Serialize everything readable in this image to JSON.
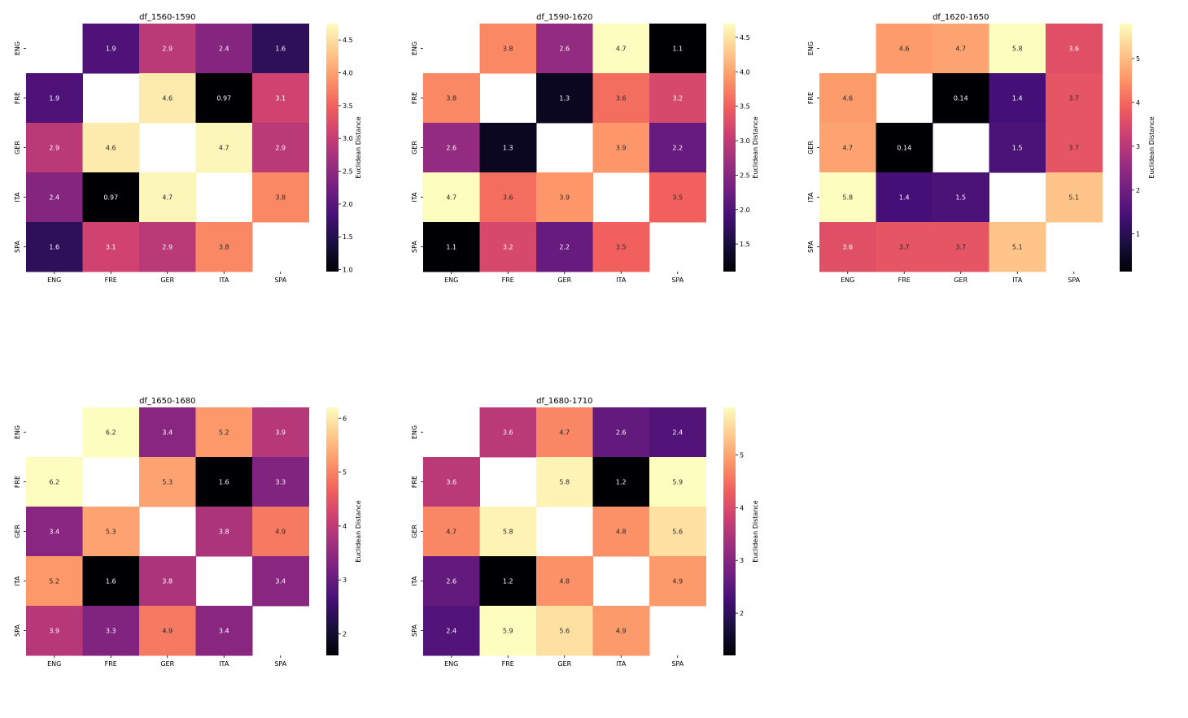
{
  "figure": {
    "colormap_name": "magma",
    "colormap": [
      "#000004",
      "#180f3d",
      "#440f76",
      "#721f81",
      "#9e2f7f",
      "#cd4071",
      "#f1605d",
      "#fd9668",
      "#feca8d",
      "#fcfdbf"
    ]
  },
  "chart_data": [
    {
      "type": "heatmap",
      "title": "df_1560-1590",
      "x_categories": [
        "ENG",
        "FRE",
        "GER",
        "ITA",
        "SPA"
      ],
      "y_categories": [
        "ENG",
        "FRE",
        "GER",
        "ITA",
        "SPA"
      ],
      "values": [
        [
          null,
          1.9,
          2.9,
          2.4,
          1.6
        ],
        [
          1.9,
          null,
          4.6,
          0.97,
          3.1
        ],
        [
          2.9,
          4.6,
          null,
          4.7,
          2.9
        ],
        [
          2.4,
          0.97,
          4.7,
          null,
          3.8
        ],
        [
          1.6,
          3.1,
          2.9,
          3.8,
          null
        ]
      ],
      "annotations": [
        [
          "",
          "1.9",
          "2.9",
          "2.4",
          "1.6"
        ],
        [
          "1.9",
          "",
          "4.6",
          "0.97",
          "3.1"
        ],
        [
          "2.9",
          "4.6",
          "",
          "4.7",
          "2.9"
        ],
        [
          "2.4",
          "0.97",
          "4.7",
          "",
          "3.8"
        ],
        [
          "1.6",
          "3.1",
          "2.9",
          "3.8",
          ""
        ]
      ],
      "colorbar": {
        "label": "Euclidean Distance",
        "range": [
          0.97,
          4.75
        ],
        "ticks": [
          1.0,
          1.5,
          2.0,
          2.5,
          3.0,
          3.5,
          4.0,
          4.5
        ],
        "tick_labels": [
          "1.0",
          "1.5",
          "2.0",
          "2.5",
          "3.0",
          "3.5",
          "4.0",
          "4.5"
        ]
      }
    },
    {
      "type": "heatmap",
      "title": "df_1590-1620",
      "x_categories": [
        "ENG",
        "FRE",
        "GER",
        "ITA",
        "SPA"
      ],
      "y_categories": [
        "ENG",
        "FRE",
        "GER",
        "ITA",
        "SPA"
      ],
      "values": [
        [
          null,
          3.8,
          2.6,
          4.7,
          1.1
        ],
        [
          3.8,
          null,
          1.3,
          3.6,
          3.2
        ],
        [
          2.6,
          1.3,
          null,
          3.9,
          2.2
        ],
        [
          4.7,
          3.6,
          3.9,
          null,
          3.5
        ],
        [
          1.1,
          3.2,
          2.2,
          3.5,
          null
        ]
      ],
      "annotations": [
        [
          "",
          "3.8",
          "2.6",
          "4.7",
          "1.1"
        ],
        [
          "3.8",
          "",
          "1.3",
          "3.6",
          "3.2"
        ],
        [
          "2.6",
          "1.3",
          "",
          "3.9",
          "2.2"
        ],
        [
          "4.7",
          "3.6",
          "3.9",
          "",
          "3.5"
        ],
        [
          "1.1",
          "3.2",
          "2.2",
          "3.5",
          ""
        ]
      ],
      "colorbar": {
        "label": "Euclidean Distance",
        "range": [
          1.1,
          4.7
        ],
        "ticks": [
          1.5,
          2.0,
          2.5,
          3.0,
          3.5,
          4.0,
          4.5
        ],
        "tick_labels": [
          "1.5",
          "2.0",
          "2.5",
          "3.0",
          "3.5",
          "4.0",
          "4.5"
        ]
      }
    },
    {
      "type": "heatmap",
      "title": "df_1620-1650",
      "x_categories": [
        "ENG",
        "FRE",
        "GER",
        "ITA",
        "SPA"
      ],
      "y_categories": [
        "ENG",
        "FRE",
        "GER",
        "ITA",
        "SPA"
      ],
      "values": [
        [
          null,
          4.6,
          4.7,
          5.8,
          3.6
        ],
        [
          4.6,
          null,
          0.14,
          1.4,
          3.7
        ],
        [
          4.7,
          0.14,
          null,
          1.5,
          3.7
        ],
        [
          5.8,
          1.4,
          1.5,
          null,
          5.1
        ],
        [
          3.6,
          3.7,
          3.7,
          5.1,
          null
        ]
      ],
      "annotations": [
        [
          "",
          "4.6",
          "4.7",
          "5.8",
          "3.6"
        ],
        [
          "4.6",
          "",
          "0.14",
          "1.4",
          "3.7"
        ],
        [
          "4.7",
          "0.14",
          "",
          "1.5",
          "3.7"
        ],
        [
          "5.8",
          "1.4",
          "1.5",
          "",
          "5.1"
        ],
        [
          "3.6",
          "3.7",
          "3.7",
          "5.1",
          ""
        ]
      ],
      "colorbar": {
        "label": "Euclidean Distance",
        "range": [
          0.14,
          5.8
        ],
        "ticks": [
          1,
          2,
          3,
          4,
          5
        ],
        "tick_labels": [
          "1",
          "2",
          "3",
          "4",
          "5"
        ]
      }
    },
    {
      "type": "heatmap",
      "title": "df_1650-1680",
      "x_categories": [
        "ENG",
        "FRE",
        "GER",
        "ITA",
        "SPA"
      ],
      "y_categories": [
        "ENG",
        "FRE",
        "GER",
        "ITA",
        "SPA"
      ],
      "values": [
        [
          null,
          6.2,
          3.4,
          5.2,
          3.9
        ],
        [
          6.2,
          null,
          5.3,
          1.6,
          3.3
        ],
        [
          3.4,
          5.3,
          null,
          3.8,
          4.9
        ],
        [
          5.2,
          1.6,
          3.8,
          null,
          3.4
        ],
        [
          3.9,
          3.3,
          4.9,
          3.4,
          null
        ]
      ],
      "annotations": [
        [
          "",
          "6.2",
          "3.4",
          "5.2",
          "3.9"
        ],
        [
          "6.2",
          "",
          "5.3",
          "1.6",
          "3.3"
        ],
        [
          "3.4",
          "5.3",
          "",
          "3.8",
          "4.9"
        ],
        [
          "5.2",
          "1.6",
          "3.8",
          "",
          "3.4"
        ],
        [
          "3.9",
          "3.3",
          "4.9",
          "3.4",
          ""
        ]
      ],
      "colorbar": {
        "label": "Euclidean Distance",
        "range": [
          1.6,
          6.2
        ],
        "ticks": [
          2,
          3,
          4,
          5,
          6
        ],
        "tick_labels": [
          "2",
          "3",
          "4",
          "5",
          "6"
        ]
      }
    },
    {
      "type": "heatmap",
      "title": "df_1680-1710",
      "x_categories": [
        "ENG",
        "FRE",
        "GER",
        "ITA",
        "SPA"
      ],
      "y_categories": [
        "ENG",
        "FRE",
        "GER",
        "ITA",
        "SPA"
      ],
      "values": [
        [
          null,
          3.6,
          4.7,
          2.6,
          2.4
        ],
        [
          3.6,
          null,
          5.8,
          1.2,
          5.9
        ],
        [
          4.7,
          5.8,
          null,
          4.8,
          5.6
        ],
        [
          2.6,
          1.2,
          4.8,
          null,
          4.9
        ],
        [
          2.4,
          5.9,
          5.6,
          4.9,
          null
        ]
      ],
      "annotations": [
        [
          "",
          "3.6",
          "4.7",
          "2.6",
          "2.4"
        ],
        [
          "3.6",
          "",
          "5.8",
          "1.2",
          "5.9"
        ],
        [
          "4.7",
          "5.8",
          "",
          "4.8",
          "5.6"
        ],
        [
          "2.6",
          "1.2",
          "4.8",
          "",
          "4.9"
        ],
        [
          "2.4",
          "5.9",
          "5.6",
          "4.9",
          ""
        ]
      ],
      "colorbar": {
        "label": "Euclidean Distance",
        "range": [
          1.2,
          5.9
        ],
        "ticks": [
          2,
          3,
          4,
          5
        ],
        "tick_labels": [
          "2",
          "3",
          "4",
          "5"
        ]
      }
    }
  ]
}
